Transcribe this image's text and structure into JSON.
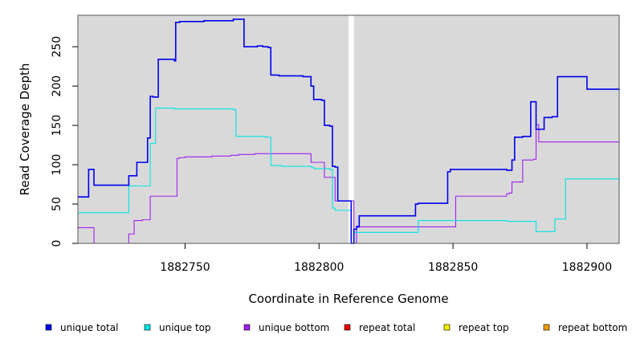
{
  "chart_data": {
    "type": "line",
    "title": "",
    "xlabel": "Coordinate in Reference Genome",
    "ylabel": "Read Coverage Depth",
    "xlim": [
      1882710,
      1882912
    ],
    "ylim": [
      0,
      290
    ],
    "xticks": [
      1882750,
      1882800,
      1882850,
      1882900
    ],
    "xtick_labels": [
      "1882750",
      "1882800",
      "1882850",
      "1882900"
    ],
    "yticks": [
      0,
      50,
      100,
      150,
      200,
      250
    ],
    "ytick_labels": [
      "0",
      "50",
      "100",
      "150",
      "200",
      "250"
    ],
    "grid": false,
    "background": "#d9d9d9",
    "gap_band": [
      1882811,
      1882813
    ],
    "legend_position": "bottom",
    "series": [
      {
        "name": "unique total",
        "color": "#0000ee",
        "x": [
          1882710,
          1882713,
          1882714,
          1882716,
          1882729,
          1882732,
          1882736,
          1882737,
          1882738,
          1882740,
          1882746,
          1882746.5,
          1882748,
          1882757,
          1882768,
          1882772,
          1882773,
          1882777,
          1882779,
          1882781,
          1882782,
          1882785,
          1882794,
          1882797,
          1882798,
          1882801,
          1882802,
          1882804,
          1882805,
          1882806,
          1882807,
          1882812,
          1882813,
          1882814,
          1882815,
          1882836,
          1882837,
          1882848,
          1882849,
          1882860,
          1882870,
          1882872,
          1882873,
          1882876,
          1882879,
          1882880,
          1882881,
          1882884,
          1882887,
          1882889,
          1882900,
          1882912
        ],
        "y": [
          59,
          59,
          94,
          74,
          86,
          103,
          134,
          187,
          186,
          234,
          232,
          281,
          282,
          283,
          285,
          250,
          250,
          251,
          250,
          249,
          214,
          213,
          212,
          200,
          183,
          182,
          150,
          149,
          98,
          97,
          54,
          0,
          18,
          21,
          35,
          50,
          51,
          91,
          94,
          94,
          93,
          106,
          135,
          136,
          180,
          180,
          145,
          160,
          161,
          212,
          196,
          197
        ]
      },
      {
        "name": "unique top",
        "color": "#00e5e5",
        "x": [
          1882710,
          1882713,
          1882729,
          1882736,
          1882737,
          1882739,
          1882742,
          1882746,
          1882758,
          1882768,
          1882769,
          1882780,
          1882782,
          1882786,
          1882797,
          1882798,
          1882802,
          1882804,
          1882805,
          1882806,
          1882812,
          1882813,
          1882814,
          1882836,
          1882837,
          1882848,
          1882849,
          1882870,
          1882876,
          1882880,
          1882881,
          1882888,
          1882892,
          1882912
        ],
        "y": [
          39,
          39,
          73,
          73,
          127,
          172,
          172,
          171,
          171,
          170,
          136,
          135,
          99,
          98,
          97,
          95,
          95,
          94,
          45,
          42,
          0,
          14,
          14,
          14,
          29,
          29,
          29,
          28,
          28,
          28,
          15,
          31,
          82,
          66
        ]
      },
      {
        "name": "unique bottom",
        "color": "#a020f0",
        "x": [
          1882710,
          1882713,
          1882716,
          1882729,
          1882731,
          1882734,
          1882737,
          1882746,
          1882747,
          1882748,
          1882750,
          1882760,
          1882767,
          1882770,
          1882776,
          1882794,
          1882797,
          1882802,
          1882806,
          1882812,
          1882813,
          1882814,
          1882815,
          1882849,
          1882851,
          1882870,
          1882871,
          1882872,
          1882876,
          1882880,
          1882881,
          1882882,
          1882912
        ],
        "y": [
          20,
          20,
          0,
          12,
          29,
          30,
          60,
          60,
          108,
          109,
          110,
          111,
          112,
          113,
          114,
          114,
          103,
          84,
          54,
          54,
          0,
          22,
          21,
          21,
          60,
          63,
          64,
          78,
          106,
          107,
          151,
          129,
          130
        ]
      },
      {
        "name": "repeat total",
        "color": "#ee0000",
        "x": [
          1882710,
          1882912
        ],
        "y": [
          0,
          0
        ]
      },
      {
        "name": "repeat top",
        "color": "#eeee00",
        "x": [
          1882710,
          1882912
        ],
        "y": [
          0,
          0
        ]
      },
      {
        "name": "repeat bottom",
        "color": "#ee9a00",
        "x": [
          1882710,
          1882912
        ],
        "y": [
          0,
          0
        ]
      }
    ]
  }
}
